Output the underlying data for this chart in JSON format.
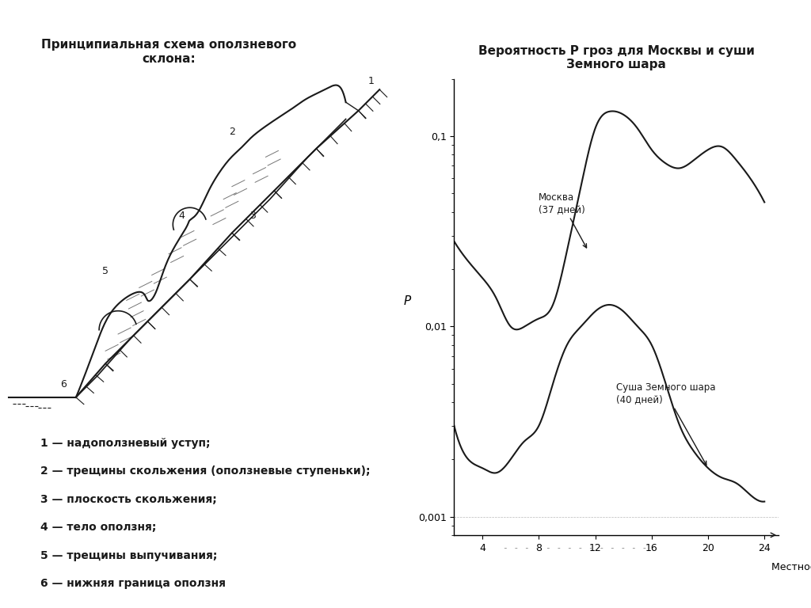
{
  "title_left": "Принципиальная схема оползневого\nсклона:",
  "title_right": "Вероятность P гроз для Москвы и суши\nЗемного шара",
  "legend_items": [
    "1 — надоползневый уступ;",
    "2 — трещины скольжения (оползневые ступеньки);",
    "3 — плоскость скольжения;",
    "4 — тело оползня;",
    "5 — трещины выпучивания;",
    "6 — нижняя граница оползня"
  ],
  "xlabel": "Местное время",
  "ylabel": "P",
  "yticks": [
    0.001,
    0.01,
    0.1
  ],
  "ytick_labels": [
    "0,001",
    "0,01",
    "0,1"
  ],
  "xticks": [
    4,
    8,
    12,
    16,
    20,
    24
  ],
  "xlim": [
    2,
    25
  ],
  "ylim_log": [
    -3,
    -0.6
  ],
  "moscow_label": "Москва\n(37 дней)",
  "earth_label": "Суша Земного шара\n(40 дней)",
  "moscow_x": [
    2,
    3,
    4,
    5,
    6,
    7,
    8,
    9,
    10,
    11,
    12,
    13,
    14,
    15,
    16,
    17,
    18,
    19,
    20,
    21,
    22,
    23,
    24
  ],
  "moscow_y": [
    0.028,
    0.022,
    0.018,
    0.014,
    0.01,
    0.01,
    0.011,
    0.013,
    0.025,
    0.055,
    0.11,
    0.135,
    0.13,
    0.11,
    0.085,
    0.072,
    0.068,
    0.075,
    0.085,
    0.088,
    0.075,
    0.06,
    0.045
  ],
  "earth_x": [
    2,
    3,
    4,
    5,
    6,
    7,
    8,
    9,
    10,
    11,
    12,
    13,
    14,
    15,
    16,
    17,
    18,
    19,
    20,
    21,
    22,
    23,
    24
  ],
  "earth_y": [
    0.003,
    0.002,
    0.0018,
    0.0017,
    0.002,
    0.0025,
    0.003,
    0.005,
    0.008,
    0.01,
    0.012,
    0.013,
    0.012,
    0.01,
    0.008,
    0.005,
    0.003,
    0.0022,
    0.0018,
    0.0016,
    0.0015,
    0.0013,
    0.0012
  ],
  "bg_color": "#ffffff",
  "line_color": "#1a1a1a",
  "text_color": "#1a1a1a"
}
